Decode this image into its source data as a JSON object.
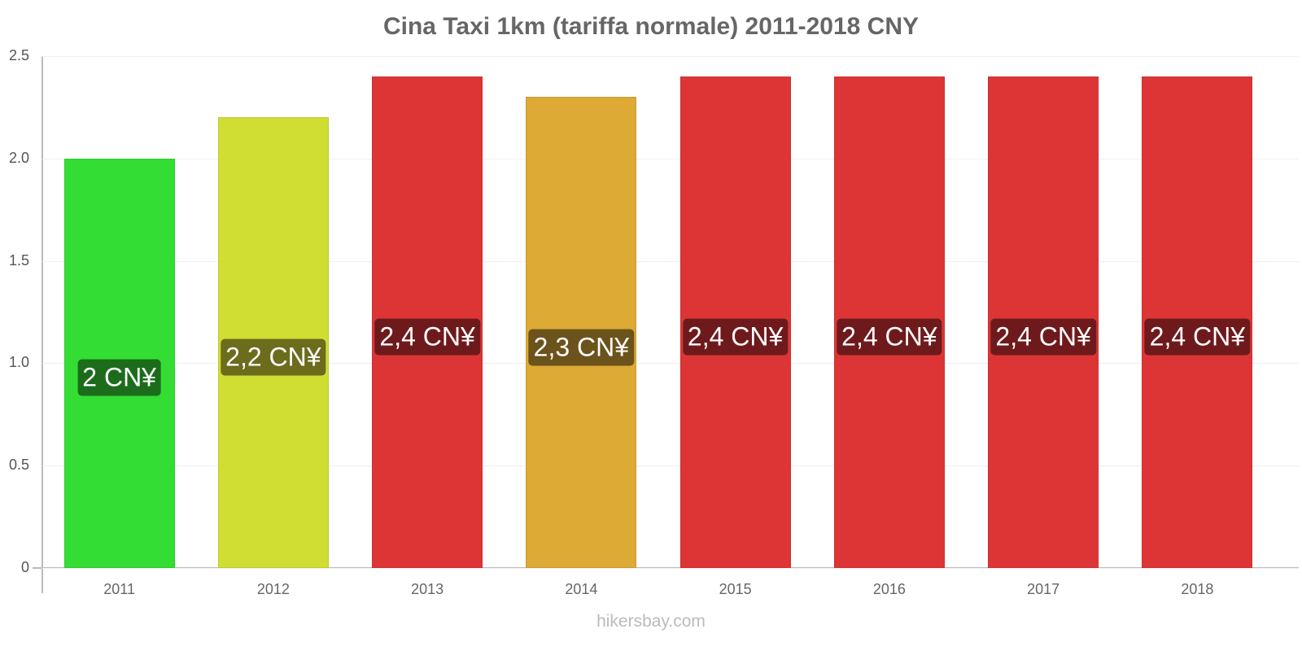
{
  "chart_data": {
    "type": "bar",
    "title": "Cina Taxi 1km (tariffa normale) 2011-2018 CNY",
    "xlabel": "",
    "ylabel": "",
    "ylim": [
      0,
      2.5
    ],
    "yticks": [
      "0",
      "0.5",
      "1.0",
      "1.5",
      "2.0",
      "2.5"
    ],
    "grid": true,
    "legend": null,
    "categories": [
      "2011",
      "2012",
      "2013",
      "2014",
      "2015",
      "2016",
      "2017",
      "2018"
    ],
    "values": [
      2.0,
      2.2,
      2.4,
      2.3,
      2.4,
      2.4,
      2.4,
      2.4
    ],
    "data_labels": [
      "2 CN¥",
      "2,2 CN¥",
      "2,4 CN¥",
      "2,3 CN¥",
      "2,4 CN¥",
      "2,4 CN¥",
      "2,4 CN¥",
      "2,4 CN¥"
    ],
    "bar_colors": [
      "#33dd33",
      "#d0dd33",
      "#dd3535",
      "#dcaa35",
      "#dd3535",
      "#dd3535",
      "#dd3535",
      "#dd3535"
    ],
    "label_colors": [
      "#1c6c1c",
      "#6b6c1c",
      "#6e1a1c",
      "#6c531c",
      "#6e1a1c",
      "#6e1a1c",
      "#6e1a1c",
      "#6e1a1c"
    ]
  },
  "footer": {
    "credit": "hikersbay.com"
  }
}
